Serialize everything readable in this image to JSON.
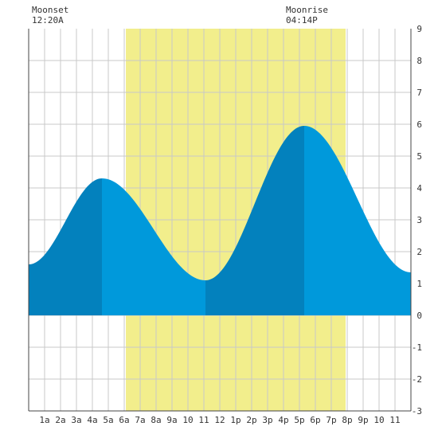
{
  "moon": {
    "moonset_label": "Moonset",
    "moonset_time": "12:20A",
    "moonrise_label": "Moonrise",
    "moonrise_time": "04:14P"
  },
  "chart_data": {
    "type": "area",
    "title": "",
    "xlabel": "",
    "ylabel": "",
    "x_ticks": [
      "1a",
      "2a",
      "3a",
      "4a",
      "5a",
      "6a",
      "7a",
      "8a",
      "9a",
      "10",
      "11",
      "12",
      "1p",
      "2p",
      "3p",
      "4p",
      "5p",
      "6p",
      "7p",
      "8p",
      "9p",
      "10",
      "11"
    ],
    "y_ticks": [
      "9",
      "8",
      "7",
      "6",
      "5",
      "4",
      "3",
      "2",
      "1",
      "0",
      "-1",
      "-2",
      "-3"
    ],
    "xlim_hours": [
      0,
      24
    ],
    "ylim": [
      -3,
      9
    ],
    "daylight_hours": [
      6.1,
      19.9
    ],
    "extrema": [
      {
        "hour": 0.0,
        "height": 1.6
      },
      {
        "hour": 4.6,
        "height": 4.3
      },
      {
        "hour": 11.1,
        "height": 1.1
      },
      {
        "hour": 17.3,
        "height": 5.95
      },
      {
        "hour": 24.0,
        "height": 1.35
      }
    ],
    "colors": {
      "daylight": "#f2ee8c",
      "tide_rising": "#0381bd",
      "tide_falling": "#0099db",
      "grid": "#c8c8c8",
      "axis": "#444444",
      "plot_bg": "#ffffff"
    },
    "grid": true
  }
}
